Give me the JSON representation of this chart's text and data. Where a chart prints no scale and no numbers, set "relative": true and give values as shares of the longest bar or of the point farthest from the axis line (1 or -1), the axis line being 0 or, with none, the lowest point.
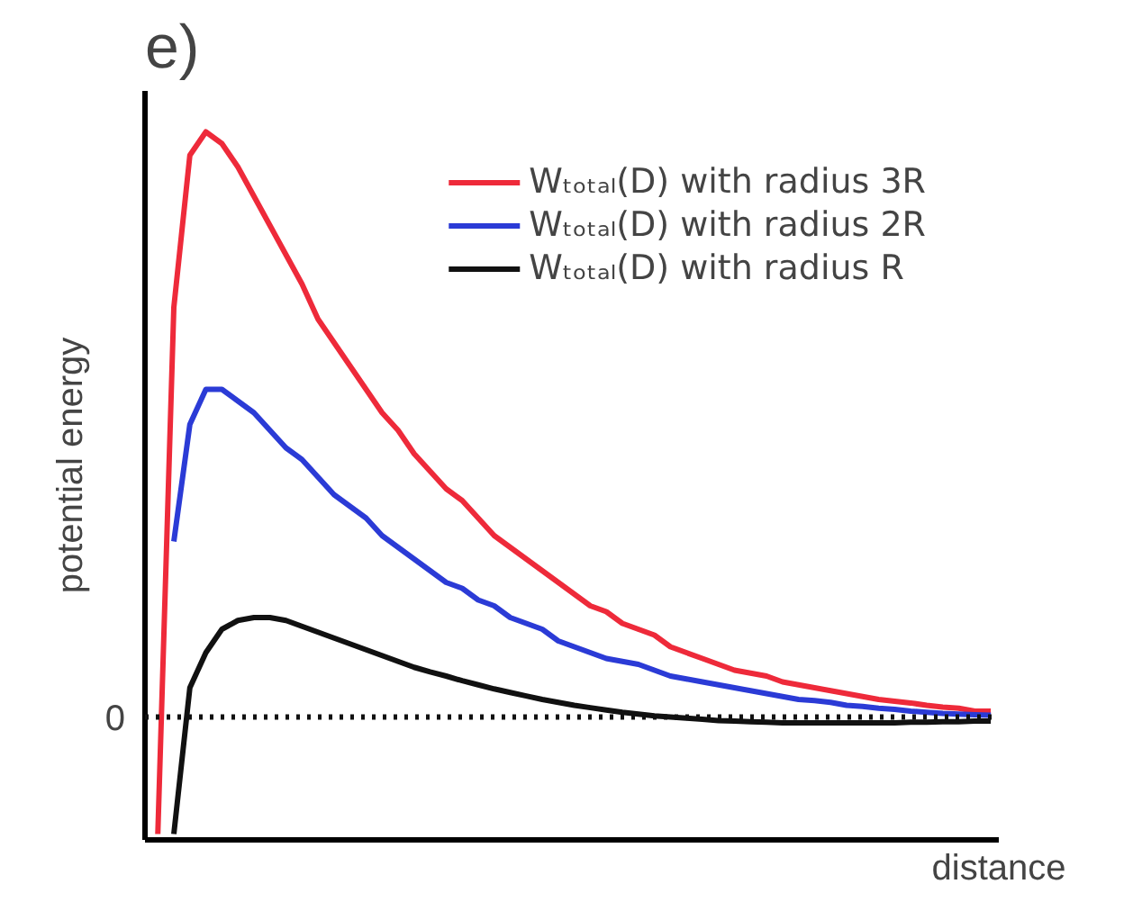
{
  "chart_data": {
    "type": "line",
    "title": "e)",
    "xlabel": "distance",
    "ylabel": "potential energy",
    "relative": true,
    "categories": [
      null,
      null,
      null,
      null,
      null,
      null,
      null,
      null,
      null,
      null,
      null,
      null,
      null,
      null,
      null,
      null,
      null,
      null,
      null,
      null,
      null,
      null,
      null,
      null,
      null,
      null,
      null,
      null,
      null,
      null,
      null,
      null,
      null,
      null,
      null,
      null,
      null,
      null,
      null,
      null,
      null,
      null,
      null,
      null,
      null,
      null,
      null,
      null,
      null,
      null,
      null,
      null,
      null
    ],
    "series": [
      {
        "name": "Wₜₒₜₐₗ(D) with radius 3R",
        "color": "#ee2a3a",
        "values": [
          -0.2,
          0.7,
          0.96,
          1.0,
          0.98,
          0.94,
          0.89,
          0.84,
          0.79,
          0.74,
          0.68,
          0.64,
          0.6,
          0.56,
          0.52,
          0.49,
          0.45,
          0.42,
          0.39,
          0.37,
          0.34,
          0.31,
          0.29,
          0.27,
          0.25,
          0.23,
          0.21,
          0.19,
          0.18,
          0.16,
          0.15,
          0.14,
          0.12,
          0.11,
          0.1,
          0.09,
          0.08,
          0.075,
          0.07,
          0.06,
          0.055,
          0.05,
          0.045,
          0.04,
          0.035,
          0.03,
          0.027,
          0.024,
          0.02,
          0.017,
          0.015,
          0.01,
          0.01
        ]
      },
      {
        "name": "Wₜₒₜₐₗ(D) with radius 2R",
        "color": "#2b3bd6",
        "values": [
          null,
          0.3,
          0.5,
          0.56,
          0.56,
          0.54,
          0.52,
          0.49,
          0.46,
          0.44,
          0.41,
          0.38,
          0.36,
          0.34,
          0.31,
          0.29,
          0.27,
          0.25,
          0.23,
          0.22,
          0.2,
          0.19,
          0.17,
          0.16,
          0.15,
          0.13,
          0.12,
          0.11,
          0.1,
          0.095,
          0.09,
          0.08,
          0.07,
          0.065,
          0.06,
          0.055,
          0.05,
          0.045,
          0.04,
          0.035,
          0.03,
          0.028,
          0.025,
          0.02,
          0.018,
          0.015,
          0.013,
          0.01,
          0.008,
          0.006,
          0.005,
          0.004,
          0.003
        ]
      },
      {
        "name": "Wₜₒₜₐₗ(D) with radius R",
        "color": "#111111",
        "values": [
          null,
          -0.2,
          0.05,
          0.11,
          0.15,
          0.165,
          0.17,
          0.17,
          0.165,
          0.155,
          0.145,
          0.135,
          0.125,
          0.115,
          0.105,
          0.095,
          0.085,
          0.077,
          0.07,
          0.062,
          0.055,
          0.048,
          0.042,
          0.036,
          0.03,
          0.025,
          0.02,
          0.016,
          0.012,
          0.008,
          0.005,
          0.002,
          0,
          -0.002,
          -0.004,
          -0.006,
          -0.007,
          -0.008,
          -0.009,
          -0.01,
          -0.01,
          -0.01,
          -0.01,
          -0.01,
          -0.01,
          -0.01,
          -0.01,
          -0.009,
          -0.009,
          -0.008,
          -0.008,
          -0.007,
          -0.007
        ]
      }
    ],
    "ref_lines": [
      {
        "axis": "y",
        "value": 0,
        "label": "0",
        "color": "#111111",
        "line_style": "dotted"
      }
    ],
    "legend": "top right",
    "grid": false,
    "marker": "none",
    "line_style": "solid"
  }
}
